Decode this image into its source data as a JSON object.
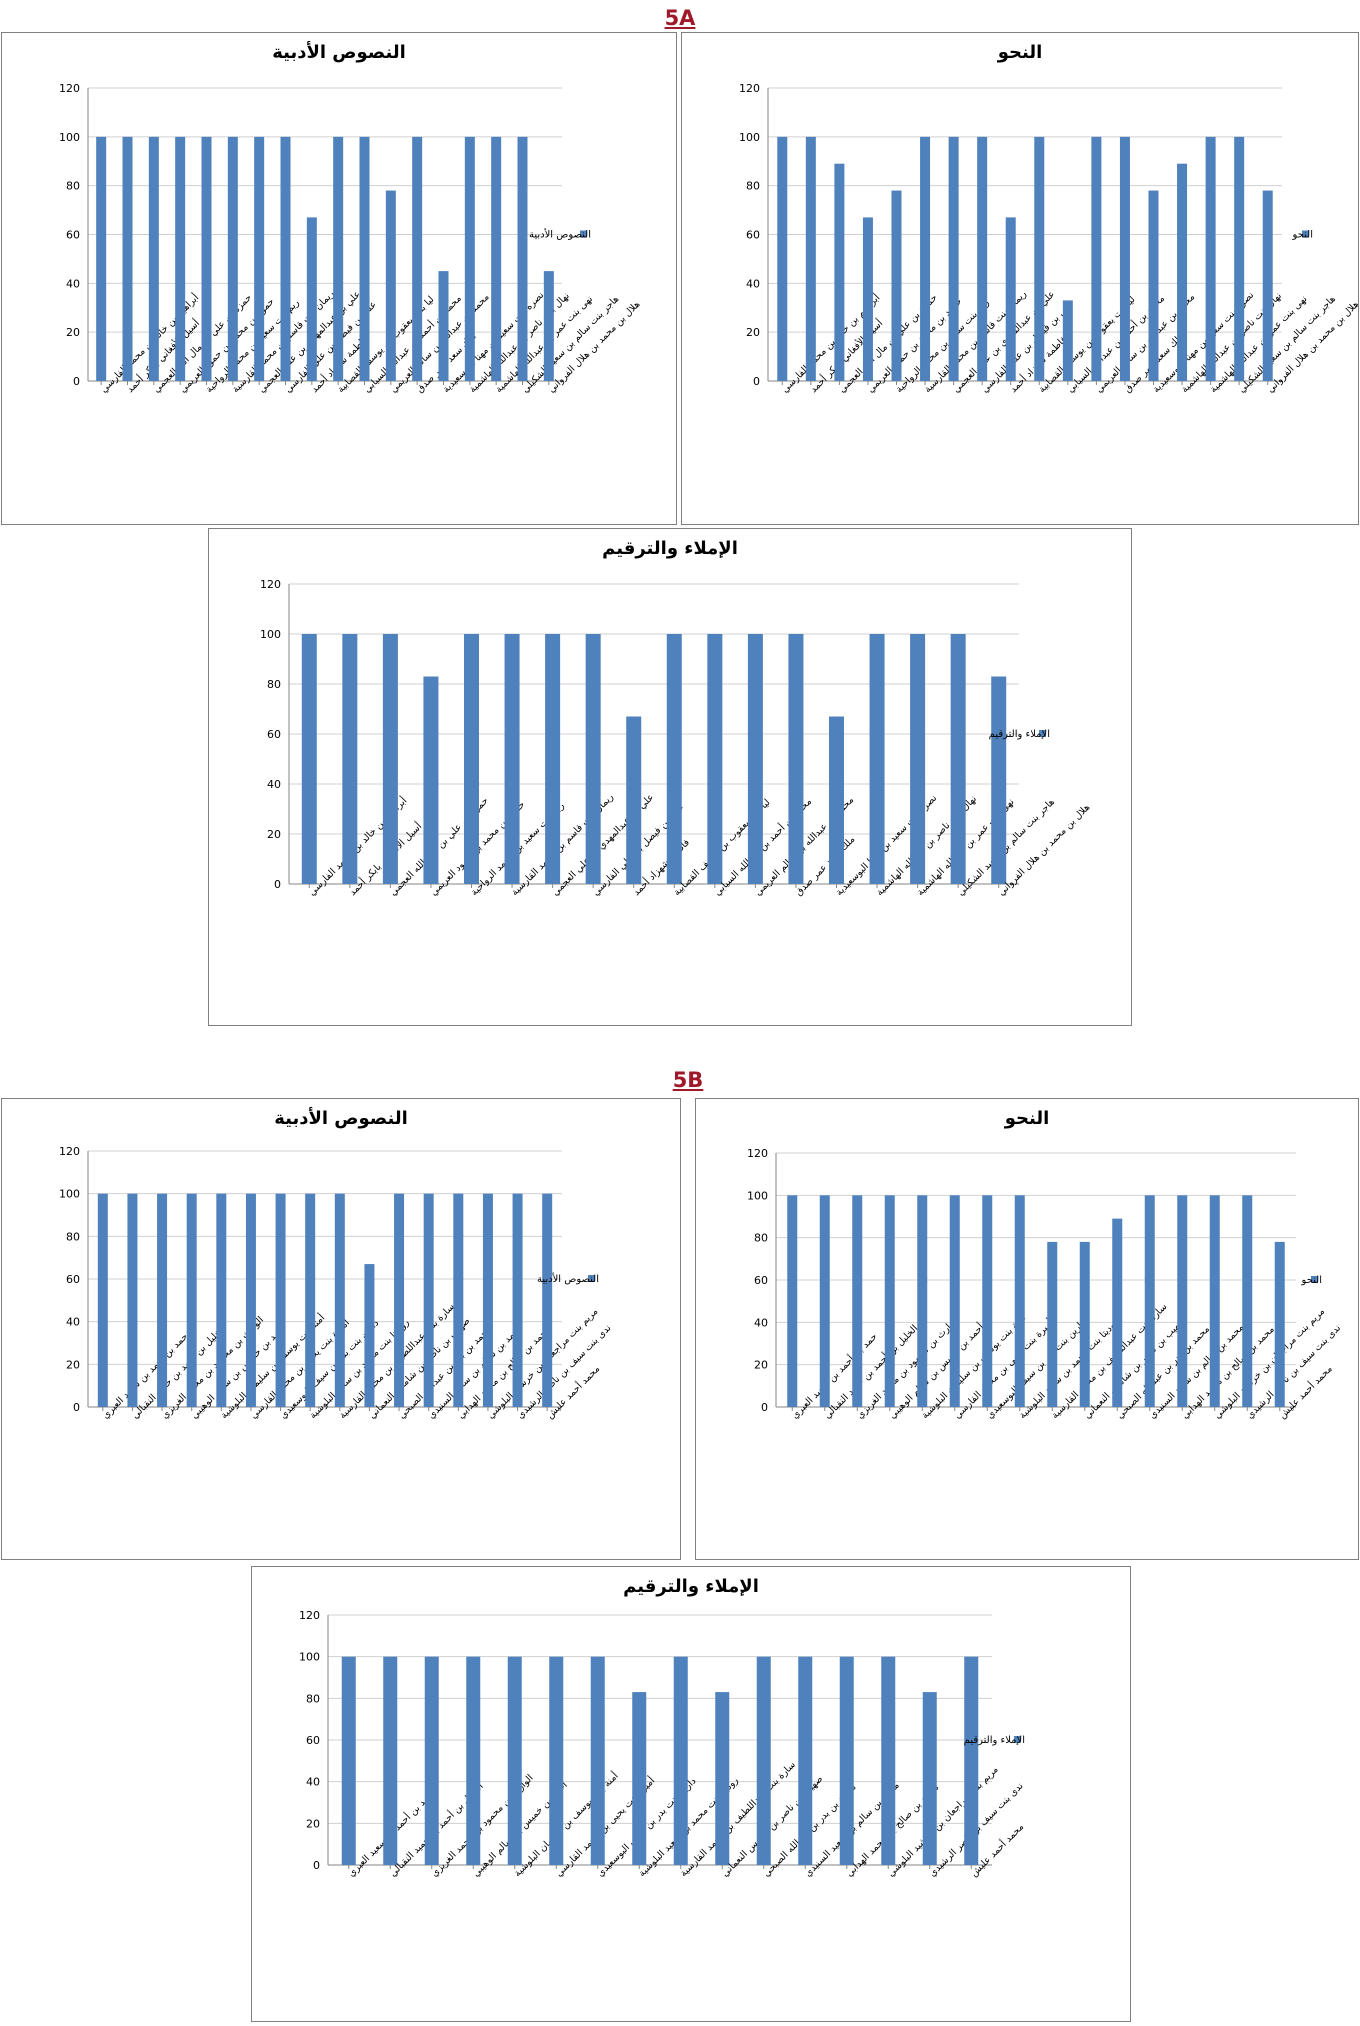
{
  "sections": [
    {
      "label": "5A"
    },
    {
      "label": "5B"
    }
  ],
  "colors": {
    "bar": "#4f81bd",
    "axis": "#868686",
    "grid": "#d0d0d0",
    "section": "#a0192a"
  },
  "chart_data": [
    {
      "id": "5A-texts",
      "section": "5A",
      "type": "bar",
      "title": "النصوص الأدبية",
      "legend": "النصوص الأدبية",
      "legend_position": "right",
      "ylim": [
        0,
        120
      ],
      "yticks": [
        0,
        20,
        40,
        60,
        80,
        100,
        120
      ],
      "categories": [
        "أبراهيم بن خالد بن محمد الفارسي",
        "أسيل الأفغاني بابكر أحمد",
        "حمزة بن علي بن مال الله العجمي",
        "حمود بن محمد بن حمود العريمي",
        "ريم بنت سعيد بن محمد الرواحية",
        "ريمان بنت قاسم بن محمد القارسية",
        "علي بن عبدالمهدي بن علي العجمي",
        "علي بن فيصل بن علي الفارسي",
        "فاطمة شهزاد أحمد",
        "ليا بنت يعقوب بن يوسف القصابية",
        "محمد بن أحمد بن عبدالله السيابي",
        "محمد بن عبدالله بن سالم العريمي",
        "ملك سعد عمر صدق",
        "نصره بنت سعيد بن مهنا البوسعيدية",
        "نهال بنت ناصر بن عبدالله الهاشمية",
        "نهى بنت عمر بن عبدالله الهاشمية",
        "هاجر بنت سالم بن سعيد الشكيلي",
        "هلال بن محمد بن هلال الفرواني"
      ],
      "values": [
        100,
        100,
        100,
        100,
        100,
        100,
        100,
        100,
        67,
        100,
        100,
        78,
        100,
        45,
        100,
        100,
        100,
        45
      ]
    },
    {
      "id": "5A-grammar",
      "section": "5A",
      "type": "bar",
      "title": "النحو",
      "legend": "النحو",
      "legend_position": "right",
      "ylim": [
        0,
        120
      ],
      "yticks": [
        0,
        20,
        40,
        60,
        80,
        100,
        120
      ],
      "categories": [
        "أبراهيم بن خالد بن محمد الفارسي",
        "أسيل الأفغاني بابكر أحمد",
        "حمزة بن علي بن مال الله العجمي",
        "حمود بن محمد بن حمود العريمي",
        "ريم بنت سعيد بن محمد الرواحية",
        "ريمان بنت قاسم بن محمد القارسية",
        "علي بن عبدالمهدي بن علي العجمي",
        "علي بن فيصل بن علي الفارسي",
        "فاطمة شهزاد أحمد",
        "ليا بنت يعقوب بن يوسف القصابية",
        "محمد بن أحمد بن عبدالله السيابي",
        "محمد بن عبدالله بن سالم العريمي",
        "ملك سعد عمر صدق",
        "نصره بنت سعيد بن مهنا البوسعيدية",
        "نهال بنت ناصر بن عبدالله الهاشمية",
        "نهى بنت عمر بن عبدالله الهاشمية",
        "هاجر بنت سالم بن سعيد الشكيلي",
        "هلال بن محمد بن هلال الفرواني"
      ],
      "values": [
        100,
        100,
        89,
        67,
        78,
        100,
        100,
        100,
        67,
        100,
        33,
        100,
        100,
        78,
        89,
        100,
        100,
        78
      ]
    },
    {
      "id": "5A-dictation",
      "section": "5A",
      "type": "bar",
      "title": "الإملاء والترقيم",
      "legend": "الإملاء والترقيم",
      "legend_position": "right",
      "ylim": [
        0,
        120
      ],
      "yticks": [
        0,
        20,
        40,
        60,
        80,
        100,
        120
      ],
      "categories": [
        "أبراهيم بن خالد بن محمد الفارسي",
        "أسيل الأفغاني بابكر أحمد",
        "حمزة بن علي بن مال الله العجمي",
        "حمود بن محمد بن حمود العريمي",
        "ريم بنت سعيد بن محمد الرواحية",
        "ريمان بنت قاسم بن محمد القارسية",
        "علي بن عبدالمهدي بن علي العجمي",
        "علي بن فيصل بن علي الفارسي",
        "فاطمة شهزاد أحمد",
        "ليا بنت يعقوب بن يوسف القصابية",
        "محمد بن أحمد بن عبدالله السيابي",
        "محمد بن عبدالله بن سالم العريمي",
        "ملك سعد عمر صدق",
        "نصره بنت سعيد بن مهنا البوسعيدية",
        "نهال بنت ناصر بن عبدالله الهاشمية",
        "نهى بنت عمر بن عبدالله الهاشمية",
        "هاجر بنت سالم بن سعيد الشكيلي",
        "هلال بن محمد بن هلال الفرواني"
      ],
      "values": [
        100,
        100,
        100,
        83,
        100,
        100,
        100,
        100,
        67,
        100,
        100,
        100,
        100,
        67,
        100,
        100,
        100,
        83
      ]
    },
    {
      "id": "5B-texts",
      "section": "5B",
      "type": "bar",
      "title": "النصوص الأدبية",
      "legend": "النصوص الأدبية",
      "legend_position": "right",
      "ylim": [
        0,
        120
      ],
      "yticks": [
        0,
        20,
        40,
        60,
        80,
        100,
        120
      ],
      "categories": [
        "حمد بن أحمد بن سعيد العبري",
        "الخليل بن أحمد بن حميد النقبالي",
        "الوارث بن محمود بن محمد الغريزي",
        "أحمد بن خميس بن سالم الوهيبي",
        "أمنة بنت يوسف بن سليمان البلوشية",
        "أميرة بنت يحيى بن محمد القارسي",
        "دارين بنت بدر بن سيف البوسعيدي",
        "روديتا بنت محمد بن سعيد البلوشية",
        "سارة بنت عبداللطيف بن محمد القارسية",
        "صهيب بن ناصر بن شامس النعماني",
        "محمد بن بدر بن عبدالله الصبحي",
        "محمد بن سالم بن سعيد السنيدي",
        "محمد بن صالح بن محمد الهدابي",
        "مريم بنت مراجعان بن خرشيد البلوشي",
        "ندى بنت سيف بن ناصر الرشيدي",
        "محمد أحمد عليش"
      ],
      "values": [
        100,
        100,
        100,
        100,
        100,
        100,
        100,
        100,
        100,
        67,
        100,
        100,
        100,
        100,
        100,
        100
      ]
    },
    {
      "id": "5B-grammar",
      "section": "5B",
      "type": "bar",
      "title": "النحو",
      "legend": "النحو",
      "legend_position": "right",
      "ylim": [
        0,
        120
      ],
      "yticks": [
        0,
        20,
        40,
        60,
        80,
        100,
        120
      ],
      "categories": [
        "حمد بن أحمد بن سعيد العبري",
        "الخليل بن أحمد بن حميد النقبالي",
        "الوارث بن محمود بن محمد الغريزي",
        "أحمد بن خميس بن سالم الوهيبي",
        "أمنة بنت يوسف بن سليمان البلوشية",
        "أميرة بنت يحيى بن محمد القارسي",
        "دارين بنت بدر بن سيف البوسعيدي",
        "روديتا بنت محمد بن سعيد البلوشية",
        "سارة بنت عبداللطيف بن محمد القارسية",
        "صهيب بن ناصر بن شامس النعماني",
        "محمد بن بدر بن عبدالله الصبحي",
        "محمد بن سالم بن سعيد السنيدي",
        "محمد بن صالح بن محمد الهدابي",
        "مريم بنت مراجعان بن خرشيد البلوشي",
        "ندى بنت سيف بن ناصر الرشيدي",
        "محمد أحمد عليش"
      ],
      "values": [
        100,
        100,
        100,
        100,
        100,
        100,
        100,
        100,
        78,
        78,
        89,
        100,
        100,
        100,
        100,
        78
      ]
    },
    {
      "id": "5B-dictation",
      "section": "5B",
      "type": "bar",
      "title": "الإملاء والترقيم",
      "legend": "الإملاء والترقيم",
      "legend_position": "right",
      "ylim": [
        0,
        120
      ],
      "yticks": [
        0,
        20,
        40,
        60,
        80,
        100,
        120
      ],
      "categories": [
        "حمد بن أحمد بن سعيد العبري",
        "الخليل بن أحمد بن حميد النقبالي",
        "الوارث بن محمود بن محمد الغريزي",
        "أحمد بن خميس بن سالم الوهيبي",
        "أمنة بنت يوسف بن سليمان البلوشية",
        "أميرة بنت يحيى بن محمد القارسي",
        "دارين بنت بدر بن سيف البوسعيدي",
        "روديتا بنت محمد بن سعيد البلوشية",
        "سارة بنت عبداللطيف بن محمد القارسية",
        "صهيب بن ناصر بن شامس النعماني",
        "محمد بن بدر بن عبدالله الصبحي",
        "محمد بن سالم بن سعيد السنيدي",
        "محمد بن صالح بن محمد الهدابي",
        "مريم بنت مراجعان بن خرشيد البلوشي",
        "ندى بنت سيف بن ناصر الرشيدي",
        "محمد أحمد عليش"
      ],
      "values": [
        100,
        100,
        100,
        100,
        100,
        100,
        100,
        83,
        100,
        83,
        100,
        100,
        100,
        100,
        83,
        100
      ]
    }
  ]
}
